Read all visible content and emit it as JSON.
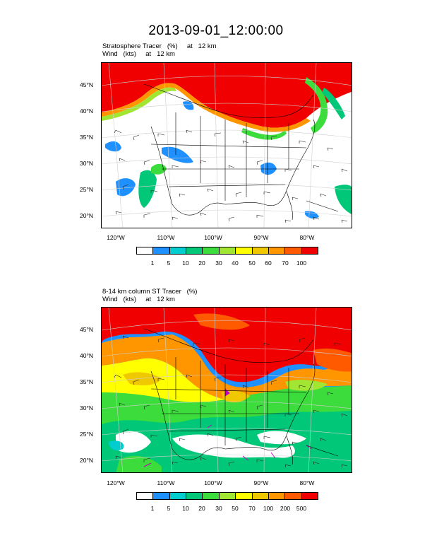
{
  "title": "2013-09-01_12:00:00",
  "panel1": {
    "line1": "Stratosphere Tracer   (%)     at   12 km",
    "line2": "Wind   (kts)     at   12 km",
    "colorbar_labels": [
      "1",
      "5",
      "10",
      "20",
      "30",
      "40",
      "50",
      "60",
      "70",
      "100"
    ]
  },
  "panel2": {
    "line1": "8-14 km column ST Tracer   (%)",
    "line2": "Wind   (kts)     at   12 km",
    "colorbar_labels": [
      "1",
      "5",
      "10",
      "20",
      "30",
      "50",
      "70",
      "100",
      "200",
      "500"
    ]
  },
  "lat_labels": [
    "45°N",
    "40°N",
    "35°N",
    "30°N",
    "25°N",
    "20°N"
  ],
  "lon_labels": [
    "120°W",
    "110°W",
    "100°W",
    "90°W",
    "80°W"
  ],
  "colors": {
    "c0": "#ffffff",
    "c1": "#1e90ff",
    "c2": "#00cdcd",
    "c3": "#00c878",
    "c4": "#3cdc3c",
    "c5": "#a0e632",
    "c6": "#ffff00",
    "c7": "#f0c800",
    "c8": "#ff9600",
    "c9": "#ff5a00",
    "c10": "#f00000"
  }
}
